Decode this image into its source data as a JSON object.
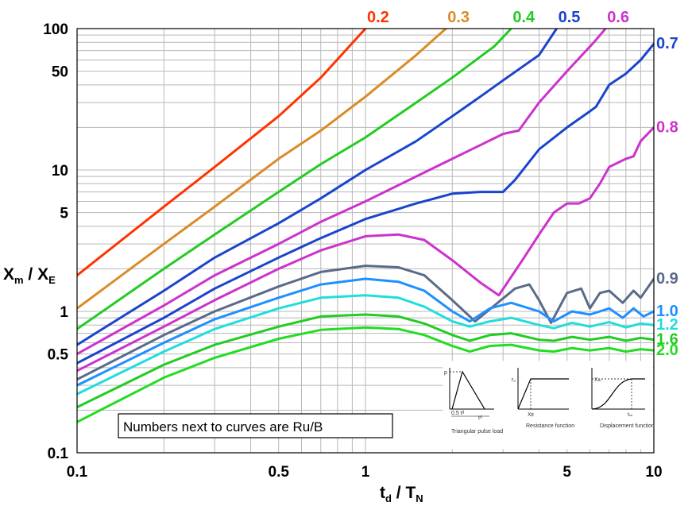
{
  "chart_data": {
    "type": "line",
    "xlabel": "t",
    "xlabel_sub": "d",
    "xlabel_mid": " / T",
    "xlabel_sub2": "N",
    "ylabel": "X",
    "ylabel_sub": "m",
    "ylabel_mid": " / X",
    "ylabel_sub2": "E",
    "x_scale": "log",
    "y_scale": "log",
    "xlim": [
      0.1,
      10
    ],
    "ylim": [
      0.1,
      100
    ],
    "x_ticks": [
      {
        "value": 0.1,
        "label": "0.1"
      },
      {
        "value": 0.5,
        "label": "0.5"
      },
      {
        "value": 1,
        "label": "1"
      },
      {
        "value": 5,
        "label": "5"
      },
      {
        "value": 10,
        "label": "10"
      }
    ],
    "y_ticks": [
      {
        "value": 100,
        "label": "100"
      },
      {
        "value": 50,
        "label": "50"
      },
      {
        "value": 10,
        "label": "10"
      },
      {
        "value": 5,
        "label": "5"
      },
      {
        "value": 1,
        "label": "1"
      },
      {
        "value": 0.5,
        "label": "0.5"
      },
      {
        "value": 0.1,
        "label": "0.1"
      }
    ],
    "grid": true,
    "annotation": "Numbers next to curves are Ru/B",
    "inset_captions": [
      "Triangular pulse load",
      "Resistance function",
      "Displacement function"
    ],
    "inset_symbols": [
      "p",
      "rᵤ",
      "Xₘ",
      "0.5 tᵈ",
      "tᵈ",
      "Xᴇ",
      "tₘ"
    ],
    "series": [
      {
        "label": "0.2",
        "color": "#ff3300",
        "points": [
          [
            0.1,
            1.8
          ],
          [
            0.2,
            5.5
          ],
          [
            0.3,
            10.5
          ],
          [
            0.5,
            24
          ],
          [
            0.7,
            45
          ],
          [
            1.0,
            100
          ]
        ]
      },
      {
        "label": "0.3",
        "color": "#d98c26",
        "points": [
          [
            0.1,
            1.05
          ],
          [
            0.2,
            3.0
          ],
          [
            0.3,
            5.5
          ],
          [
            0.5,
            12
          ],
          [
            0.7,
            19
          ],
          [
            1.0,
            33
          ],
          [
            1.5,
            65
          ],
          [
            1.9,
            100
          ]
        ]
      },
      {
        "label": "0.4",
        "color": "#22cc22",
        "points": [
          [
            0.1,
            0.75
          ],
          [
            0.2,
            2.0
          ],
          [
            0.3,
            3.5
          ],
          [
            0.5,
            7.0
          ],
          [
            0.7,
            11
          ],
          [
            1.0,
            17
          ],
          [
            1.5,
            30
          ],
          [
            2.0,
            45
          ],
          [
            2.8,
            75
          ],
          [
            3.2,
            100
          ]
        ]
      },
      {
        "label": "0.5",
        "color": "#1a44cc",
        "points": [
          [
            0.1,
            0.58
          ],
          [
            0.2,
            1.4
          ],
          [
            0.3,
            2.4
          ],
          [
            0.5,
            4.2
          ],
          [
            0.7,
            6.3
          ],
          [
            1.0,
            10
          ],
          [
            1.5,
            16
          ],
          [
            2.0,
            24
          ],
          [
            2.5,
            33
          ],
          [
            3.0,
            43
          ],
          [
            4.0,
            65
          ],
          [
            4.6,
            100
          ]
        ]
      },
      {
        "label": "0.6",
        "color": "#cc33cc",
        "points": [
          [
            0.1,
            0.5
          ],
          [
            0.2,
            1.1
          ],
          [
            0.3,
            1.8
          ],
          [
            0.5,
            3.0
          ],
          [
            0.7,
            4.3
          ],
          [
            1.0,
            6.0
          ],
          [
            1.5,
            9.0
          ],
          [
            2.0,
            12
          ],
          [
            2.5,
            15
          ],
          [
            3.0,
            18
          ],
          [
            3.4,
            19
          ],
          [
            4.0,
            30
          ],
          [
            5.0,
            50
          ],
          [
            6.2,
            80
          ],
          [
            6.8,
            100
          ]
        ]
      },
      {
        "label": "0.7",
        "color": "#1a44cc",
        "points": [
          [
            0.1,
            0.43
          ],
          [
            0.2,
            0.9
          ],
          [
            0.3,
            1.45
          ],
          [
            0.5,
            2.4
          ],
          [
            0.7,
            3.3
          ],
          [
            1.0,
            4.5
          ],
          [
            1.5,
            5.8
          ],
          [
            2.0,
            6.8
          ],
          [
            2.5,
            7.0
          ],
          [
            3.0,
            7.0
          ],
          [
            3.3,
            8.5
          ],
          [
            4.0,
            14
          ],
          [
            5.0,
            20
          ],
          [
            6.0,
            26
          ],
          [
            6.3,
            28
          ],
          [
            7.0,
            40
          ],
          [
            8.0,
            48
          ],
          [
            9.0,
            60
          ],
          [
            10.0,
            78
          ]
        ]
      },
      {
        "label": "0.8",
        "color": "#cc33cc",
        "points": [
          [
            0.1,
            0.38
          ],
          [
            0.2,
            0.78
          ],
          [
            0.3,
            1.2
          ],
          [
            0.5,
            2.0
          ],
          [
            0.7,
            2.7
          ],
          [
            1.0,
            3.4
          ],
          [
            1.3,
            3.5
          ],
          [
            1.6,
            3.2
          ],
          [
            2.0,
            2.3
          ],
          [
            2.5,
            1.6
          ],
          [
            2.9,
            1.3
          ],
          [
            3.5,
            2.3
          ],
          [
            4.0,
            3.5
          ],
          [
            4.5,
            5.0
          ],
          [
            5.0,
            5.8
          ],
          [
            5.5,
            5.8
          ],
          [
            6.0,
            6.3
          ],
          [
            6.5,
            8.0
          ],
          [
            7.0,
            10.5
          ],
          [
            8.0,
            12
          ],
          [
            8.5,
            12.5
          ],
          [
            9.0,
            16
          ],
          [
            10.0,
            20
          ]
        ]
      },
      {
        "label": "0.9",
        "color": "#5a6a8a",
        "points": [
          [
            0.1,
            0.33
          ],
          [
            0.2,
            0.68
          ],
          [
            0.3,
            1.0
          ],
          [
            0.5,
            1.5
          ],
          [
            0.7,
            1.9
          ],
          [
            1.0,
            2.1
          ],
          [
            1.3,
            2.05
          ],
          [
            1.6,
            1.8
          ],
          [
            2.0,
            1.2
          ],
          [
            2.4,
            0.85
          ],
          [
            2.8,
            1.1
          ],
          [
            3.3,
            1.45
          ],
          [
            3.7,
            1.55
          ],
          [
            4.0,
            1.2
          ],
          [
            4.4,
            0.83
          ],
          [
            5.0,
            1.35
          ],
          [
            5.6,
            1.45
          ],
          [
            6.0,
            1.05
          ],
          [
            6.5,
            1.35
          ],
          [
            7.0,
            1.4
          ],
          [
            7.8,
            1.15
          ],
          [
            8.5,
            1.4
          ],
          [
            9.0,
            1.25
          ],
          [
            10.0,
            1.7
          ]
        ]
      },
      {
        "label": "1.0",
        "color": "#1e90ff",
        "points": [
          [
            0.1,
            0.3
          ],
          [
            0.2,
            0.6
          ],
          [
            0.3,
            0.88
          ],
          [
            0.5,
            1.25
          ],
          [
            0.7,
            1.55
          ],
          [
            1.0,
            1.7
          ],
          [
            1.3,
            1.62
          ],
          [
            1.6,
            1.4
          ],
          [
            2.0,
            1.0
          ],
          [
            2.3,
            0.85
          ],
          [
            2.7,
            1.05
          ],
          [
            3.2,
            1.15
          ],
          [
            4.0,
            1.0
          ],
          [
            4.5,
            0.85
          ],
          [
            5.2,
            1.0
          ],
          [
            6.0,
            0.95
          ],
          [
            7.0,
            1.05
          ],
          [
            7.8,
            0.9
          ],
          [
            8.5,
            1.05
          ],
          [
            9.2,
            0.92
          ],
          [
            10.0,
            1.0
          ]
        ]
      },
      {
        "label": "1.2",
        "color": "#22dddd",
        "points": [
          [
            0.1,
            0.26
          ],
          [
            0.2,
            0.52
          ],
          [
            0.3,
            0.75
          ],
          [
            0.5,
            1.05
          ],
          [
            0.7,
            1.25
          ],
          [
            1.0,
            1.3
          ],
          [
            1.3,
            1.25
          ],
          [
            1.6,
            1.08
          ],
          [
            2.0,
            0.85
          ],
          [
            2.3,
            0.78
          ],
          [
            2.7,
            0.85
          ],
          [
            3.2,
            0.9
          ],
          [
            4.0,
            0.8
          ],
          [
            4.5,
            0.76
          ],
          [
            5.2,
            0.83
          ],
          [
            6.0,
            0.78
          ],
          [
            7.0,
            0.84
          ],
          [
            8.0,
            0.77
          ],
          [
            9.0,
            0.82
          ],
          [
            10.0,
            0.8
          ]
        ]
      },
      {
        "label": "1.6",
        "color": "#22cc22",
        "points": [
          [
            0.1,
            0.21
          ],
          [
            0.2,
            0.42
          ],
          [
            0.3,
            0.58
          ],
          [
            0.5,
            0.78
          ],
          [
            0.7,
            0.92
          ],
          [
            1.0,
            0.95
          ],
          [
            1.3,
            0.92
          ],
          [
            1.6,
            0.82
          ],
          [
            2.0,
            0.68
          ],
          [
            2.3,
            0.62
          ],
          [
            2.7,
            0.68
          ],
          [
            3.2,
            0.7
          ],
          [
            4.0,
            0.63
          ],
          [
            4.5,
            0.62
          ],
          [
            5.2,
            0.66
          ],
          [
            6.0,
            0.63
          ],
          [
            7.0,
            0.66
          ],
          [
            8.0,
            0.62
          ],
          [
            9.0,
            0.65
          ],
          [
            10.0,
            0.63
          ]
        ]
      },
      {
        "label": "2.0",
        "color": "#22dd22",
        "points": [
          [
            0.1,
            0.165
          ],
          [
            0.2,
            0.34
          ],
          [
            0.3,
            0.47
          ],
          [
            0.5,
            0.64
          ],
          [
            0.7,
            0.74
          ],
          [
            1.0,
            0.77
          ],
          [
            1.3,
            0.75
          ],
          [
            1.6,
            0.68
          ],
          [
            2.0,
            0.57
          ],
          [
            2.3,
            0.52
          ],
          [
            2.7,
            0.57
          ],
          [
            3.2,
            0.58
          ],
          [
            4.0,
            0.53
          ],
          [
            4.5,
            0.52
          ],
          [
            5.2,
            0.55
          ],
          [
            6.0,
            0.53
          ],
          [
            7.0,
            0.55
          ],
          [
            8.0,
            0.52
          ],
          [
            9.0,
            0.54
          ],
          [
            10.0,
            0.53
          ]
        ]
      }
    ]
  }
}
